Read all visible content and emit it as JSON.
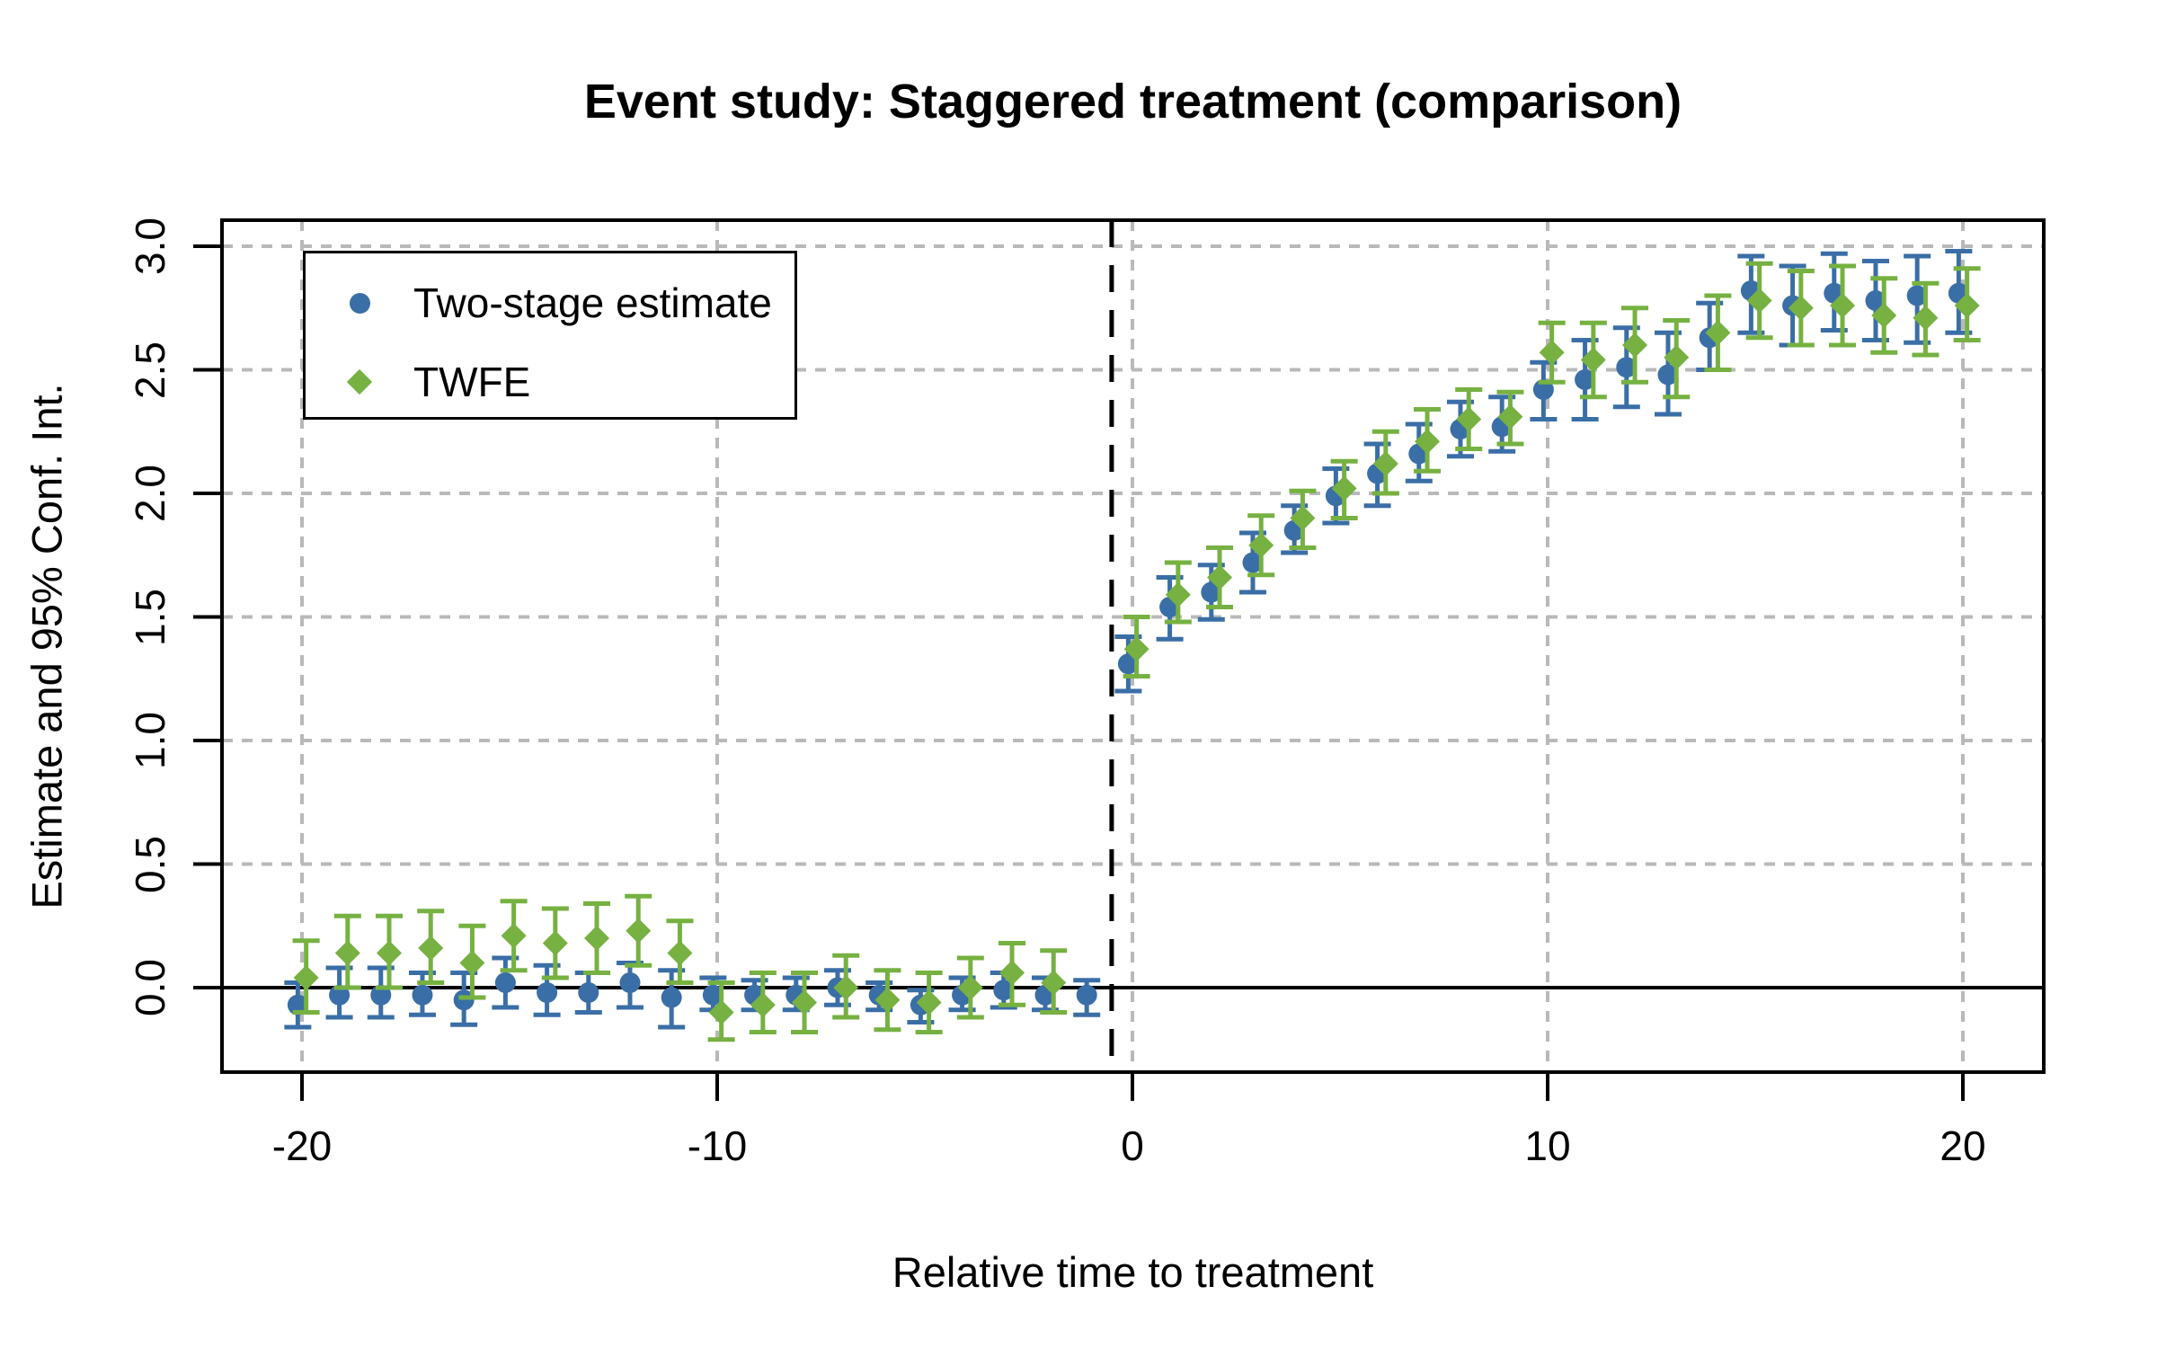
{
  "chart_data": {
    "type": "scatter",
    "subtype": "event-study-errorbar",
    "title": "Event study: Staggered treatment (comparison)",
    "xlabel": "Relative time to treatment",
    "ylabel": "Estimate and 95% Conf. Int.",
    "x_ticks": [
      -20,
      -10,
      0,
      10,
      20
    ],
    "x_tick_labels": [
      "-20",
      "-10",
      "0",
      "10",
      "20"
    ],
    "y_ticks": [
      0.0,
      0.5,
      1.0,
      1.5,
      2.0,
      2.5,
      3.0
    ],
    "y_tick_labels": [
      "0.0",
      "0.5",
      "1.0",
      "1.5",
      "2.0",
      "2.5",
      "3.0"
    ],
    "xlim": [
      -21.9,
      21.9
    ],
    "ylim": [
      -0.34,
      3.1
    ],
    "grid": "dotted gray at every tick",
    "reference_lines": {
      "horizontal_solid_y": 0,
      "vertical_dashed_x": -0.5
    },
    "legend": {
      "position": "top-left",
      "items": [
        {
          "label": "Two-stage estimate",
          "marker": "circle",
          "color": "#3A6EA6"
        },
        {
          "label": "TWFE",
          "marker": "diamond",
          "color": "#76B141"
        }
      ]
    },
    "colors": {
      "two_stage": "#3A6EA6",
      "twfe": "#76B141",
      "grid": "#B9B9B9",
      "axis": "#000000"
    },
    "series": [
      {
        "name": "Two-stage estimate",
        "marker": "circle",
        "color": "#3A6EA6",
        "x_offset": -0.1,
        "points": [
          {
            "t": -20,
            "est": -0.07,
            "lo": -0.16,
            "hi": 0.02
          },
          {
            "t": -19,
            "est": -0.03,
            "lo": -0.12,
            "hi": 0.08
          },
          {
            "t": -18,
            "est": -0.03,
            "lo": -0.12,
            "hi": 0.08
          },
          {
            "t": -17,
            "est": -0.03,
            "lo": -0.11,
            "hi": 0.06
          },
          {
            "t": -16,
            "est": -0.05,
            "lo": -0.15,
            "hi": 0.06
          },
          {
            "t": -15,
            "est": 0.02,
            "lo": -0.08,
            "hi": 0.12
          },
          {
            "t": -14,
            "est": -0.02,
            "lo": -0.11,
            "hi": 0.09
          },
          {
            "t": -13,
            "est": -0.02,
            "lo": -0.1,
            "hi": 0.06
          },
          {
            "t": -12,
            "est": 0.02,
            "lo": -0.08,
            "hi": 0.1
          },
          {
            "t": -11,
            "est": -0.04,
            "lo": -0.16,
            "hi": 0.07
          },
          {
            "t": -10,
            "est": -0.03,
            "lo": -0.09,
            "hi": 0.04
          },
          {
            "t": -9,
            "est": -0.03,
            "lo": -0.09,
            "hi": 0.03
          },
          {
            "t": -8,
            "est": -0.03,
            "lo": -0.09,
            "hi": 0.04
          },
          {
            "t": -7,
            "est": 0.0,
            "lo": -0.07,
            "hi": 0.07
          },
          {
            "t": -6,
            "est": -0.03,
            "lo": -0.09,
            "hi": 0.02
          },
          {
            "t": -5,
            "est": -0.07,
            "lo": -0.14,
            "hi": -0.01
          },
          {
            "t": -4,
            "est": -0.03,
            "lo": -0.09,
            "hi": 0.04
          },
          {
            "t": -3,
            "est": -0.01,
            "lo": -0.08,
            "hi": 0.06
          },
          {
            "t": -2,
            "est": -0.03,
            "lo": -0.09,
            "hi": 0.04
          },
          {
            "t": -1,
            "est": -0.03,
            "lo": -0.11,
            "hi": 0.03
          },
          {
            "t": 0,
            "est": 1.31,
            "lo": 1.2,
            "hi": 1.42
          },
          {
            "t": 1,
            "est": 1.54,
            "lo": 1.41,
            "hi": 1.66
          },
          {
            "t": 2,
            "est": 1.6,
            "lo": 1.49,
            "hi": 1.71
          },
          {
            "t": 3,
            "est": 1.72,
            "lo": 1.6,
            "hi": 1.84
          },
          {
            "t": 4,
            "est": 1.85,
            "lo": 1.76,
            "hi": 1.95
          },
          {
            "t": 5,
            "est": 1.99,
            "lo": 1.88,
            "hi": 2.1
          },
          {
            "t": 6,
            "est": 2.08,
            "lo": 1.95,
            "hi": 2.2
          },
          {
            "t": 7,
            "est": 2.16,
            "lo": 2.05,
            "hi": 2.28
          },
          {
            "t": 8,
            "est": 2.26,
            "lo": 2.15,
            "hi": 2.37
          },
          {
            "t": 9,
            "est": 2.27,
            "lo": 2.17,
            "hi": 2.39
          },
          {
            "t": 10,
            "est": 2.42,
            "lo": 2.3,
            "hi": 2.53
          },
          {
            "t": 11,
            "est": 2.46,
            "lo": 2.3,
            "hi": 2.62
          },
          {
            "t": 12,
            "est": 2.51,
            "lo": 2.35,
            "hi": 2.67
          },
          {
            "t": 13,
            "est": 2.48,
            "lo": 2.32,
            "hi": 2.65
          },
          {
            "t": 14,
            "est": 2.63,
            "lo": 2.5,
            "hi": 2.77
          },
          {
            "t": 15,
            "est": 2.82,
            "lo": 2.65,
            "hi": 2.96
          },
          {
            "t": 16,
            "est": 2.76,
            "lo": 2.6,
            "hi": 2.92
          },
          {
            "t": 17,
            "est": 2.81,
            "lo": 2.66,
            "hi": 2.97
          },
          {
            "t": 18,
            "est": 2.78,
            "lo": 2.62,
            "hi": 2.94
          },
          {
            "t": 19,
            "est": 2.8,
            "lo": 2.61,
            "hi": 2.96
          },
          {
            "t": 20,
            "est": 2.81,
            "lo": 2.65,
            "hi": 2.98
          }
        ]
      },
      {
        "name": "TWFE",
        "marker": "diamond",
        "color": "#76B141",
        "x_offset": 0.1,
        "points": [
          {
            "t": -20,
            "est": 0.04,
            "lo": -0.1,
            "hi": 0.19
          },
          {
            "t": -19,
            "est": 0.14,
            "lo": 0.0,
            "hi": 0.29
          },
          {
            "t": -18,
            "est": 0.14,
            "lo": 0.0,
            "hi": 0.29
          },
          {
            "t": -17,
            "est": 0.16,
            "lo": 0.02,
            "hi": 0.31
          },
          {
            "t": -16,
            "est": 0.1,
            "lo": -0.04,
            "hi": 0.25
          },
          {
            "t": -15,
            "est": 0.21,
            "lo": 0.07,
            "hi": 0.35
          },
          {
            "t": -14,
            "est": 0.18,
            "lo": 0.04,
            "hi": 0.32
          },
          {
            "t": -13,
            "est": 0.2,
            "lo": 0.06,
            "hi": 0.34
          },
          {
            "t": -12,
            "est": 0.23,
            "lo": 0.09,
            "hi": 0.37
          },
          {
            "t": -11,
            "est": 0.14,
            "lo": 0.02,
            "hi": 0.27
          },
          {
            "t": -10,
            "est": -0.1,
            "lo": -0.21,
            "hi": 0.02
          },
          {
            "t": -9,
            "est": -0.07,
            "lo": -0.18,
            "hi": 0.06
          },
          {
            "t": -8,
            "est": -0.06,
            "lo": -0.18,
            "hi": 0.06
          },
          {
            "t": -7,
            "est": 0.0,
            "lo": -0.12,
            "hi": 0.13
          },
          {
            "t": -6,
            "est": -0.05,
            "lo": -0.17,
            "hi": 0.07
          },
          {
            "t": -5,
            "est": -0.06,
            "lo": -0.18,
            "hi": 0.06
          },
          {
            "t": -4,
            "est": 0.0,
            "lo": -0.12,
            "hi": 0.12
          },
          {
            "t": -3,
            "est": 0.06,
            "lo": -0.07,
            "hi": 0.18
          },
          {
            "t": -2,
            "est": 0.02,
            "lo": -0.1,
            "hi": 0.15
          },
          {
            "t": 0,
            "est": 1.37,
            "lo": 1.26,
            "hi": 1.5
          },
          {
            "t": 1,
            "est": 1.59,
            "lo": 1.48,
            "hi": 1.72
          },
          {
            "t": 2,
            "est": 1.66,
            "lo": 1.54,
            "hi": 1.78
          },
          {
            "t": 3,
            "est": 1.79,
            "lo": 1.67,
            "hi": 1.91
          },
          {
            "t": 4,
            "est": 1.9,
            "lo": 1.78,
            "hi": 2.01
          },
          {
            "t": 5,
            "est": 2.02,
            "lo": 1.9,
            "hi": 2.13
          },
          {
            "t": 6,
            "est": 2.12,
            "lo": 2.0,
            "hi": 2.25
          },
          {
            "t": 7,
            "est": 2.21,
            "lo": 2.09,
            "hi": 2.34
          },
          {
            "t": 8,
            "est": 2.3,
            "lo": 2.18,
            "hi": 2.42
          },
          {
            "t": 9,
            "est": 2.31,
            "lo": 2.2,
            "hi": 2.41
          },
          {
            "t": 10,
            "est": 2.57,
            "lo": 2.45,
            "hi": 2.69
          },
          {
            "t": 11,
            "est": 2.54,
            "lo": 2.39,
            "hi": 2.69
          },
          {
            "t": 12,
            "est": 2.6,
            "lo": 2.45,
            "hi": 2.75
          },
          {
            "t": 13,
            "est": 2.55,
            "lo": 2.39,
            "hi": 2.7
          },
          {
            "t": 14,
            "est": 2.65,
            "lo": 2.5,
            "hi": 2.8
          },
          {
            "t": 15,
            "est": 2.78,
            "lo": 2.63,
            "hi": 2.93
          },
          {
            "t": 16,
            "est": 2.75,
            "lo": 2.6,
            "hi": 2.9
          },
          {
            "t": 17,
            "est": 2.76,
            "lo": 2.6,
            "hi": 2.92
          },
          {
            "t": 18,
            "est": 2.72,
            "lo": 2.57,
            "hi": 2.87
          },
          {
            "t": 19,
            "est": 2.71,
            "lo": 2.56,
            "hi": 2.85
          },
          {
            "t": 20,
            "est": 2.76,
            "lo": 2.62,
            "hi": 2.91
          }
        ]
      }
    ]
  }
}
